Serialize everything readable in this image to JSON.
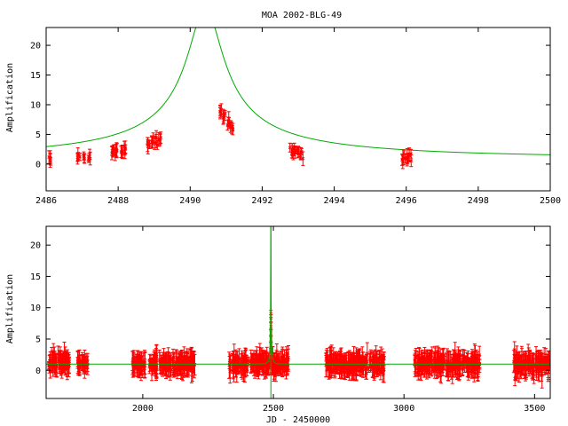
{
  "title": "MOA 2002-BLG-49",
  "colors": {
    "data": "#ff0000",
    "model": "#00aa00",
    "axes": "#000000",
    "background": "#ffffff"
  },
  "chart_data": [
    {
      "type": "scatter",
      "ylabel": "Amplification",
      "xlabel": "",
      "xlim": [
        2486,
        2500
      ],
      "ylim": [
        -4.5,
        23
      ],
      "x_ticks": [
        2486,
        2488,
        2490,
        2492,
        2494,
        2496,
        2498,
        2500
      ],
      "y_ticks": [
        0,
        5,
        10,
        15,
        20
      ],
      "grid": false,
      "model": {
        "name": "",
        "t0": 2490.42,
        "u0": 0.038,
        "tE": 12.5,
        "baseline": 1.0
      },
      "series": [
        {
          "clusters": [
            {
              "x": 2486.1,
              "y": 1.0
            },
            {
              "x": 2486.9,
              "y": 1.2
            },
            {
              "x": 2487.05,
              "y": 1.3
            },
            {
              "x": 2487.2,
              "y": 1.35
            },
            {
              "x": 2487.85,
              "y": 2.0
            },
            {
              "x": 2487.95,
              "y": 2.2
            },
            {
              "x": 2488.1,
              "y": 2.3
            },
            {
              "x": 2488.2,
              "y": 2.5
            },
            {
              "x": 2488.85,
              "y": 3.4
            },
            {
              "x": 2488.95,
              "y": 3.8
            },
            {
              "x": 2489.05,
              "y": 4.0
            },
            {
              "x": 2489.15,
              "y": 4.2
            },
            {
              "x": 2490.85,
              "y": 8.8
            },
            {
              "x": 2490.95,
              "y": 8.2
            },
            {
              "x": 2491.05,
              "y": 7.2
            },
            {
              "x": 2491.15,
              "y": 6.2
            },
            {
              "x": 2492.8,
              "y": 2.1
            },
            {
              "x": 2492.9,
              "y": 2.0
            },
            {
              "x": 2493.0,
              "y": 1.9
            },
            {
              "x": 2493.1,
              "y": 1.7
            },
            {
              "x": 2495.9,
              "y": 1.2
            },
            {
              "x": 2496.0,
              "y": 1.1
            },
            {
              "x": 2496.1,
              "y": 1.15
            }
          ]
        }
      ]
    },
    {
      "type": "scatter",
      "ylabel": "Amplification",
      "xlabel": "JD - 2450000",
      "xlim": [
        1630,
        3560
      ],
      "ylim": [
        -4.5,
        23
      ],
      "x_ticks": [
        2000,
        2500,
        3000,
        3500
      ],
      "y_ticks": [
        0,
        5,
        10,
        15,
        20
      ],
      "grid": false,
      "model": {
        "name": "",
        "t0": 2490.42,
        "u0": 0.038,
        "tE": 12.5,
        "baseline": 1.0
      },
      "series": [
        {
          "seasons": [
            {
              "start": 1640,
              "end": 1720,
              "mean": 1.3,
              "spread": 1.0
            },
            {
              "start": 1750,
              "end": 1790,
              "mean": 1.1,
              "spread": 0.6
            },
            {
              "start": 1960,
              "end": 2010,
              "mean": 0.9,
              "spread": 0.6
            },
            {
              "start": 2020,
              "end": 2200,
              "mean": 1.0,
              "spread": 1.0
            },
            {
              "start": 2330,
              "end": 2560,
              "mean": 1.0,
              "spread": 1.1
            },
            {
              "start": 2700,
              "end": 2930,
              "mean": 1.1,
              "spread": 1.3
            },
            {
              "start": 3040,
              "end": 3290,
              "mean": 1.0,
              "spread": 1.2
            },
            {
              "start": 3420,
              "end": 3560,
              "mean": 1.0,
              "spread": 1.4
            }
          ],
          "peak": {
            "x": 2490.5,
            "y": 9.0
          }
        }
      ]
    }
  ]
}
